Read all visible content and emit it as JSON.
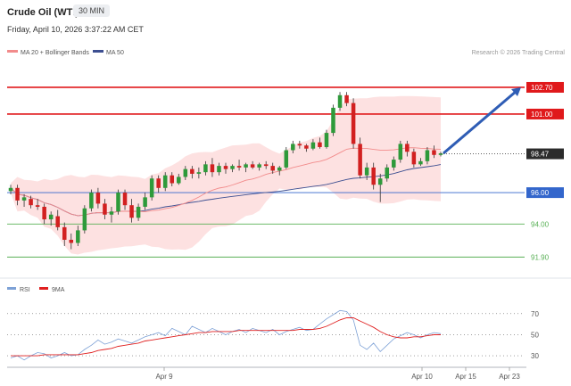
{
  "header": {
    "title": "Crude Oil (WTI)",
    "timeframe": "30 MIN",
    "datetime": "Friday, April 10, 2026 3:37:22 AM CET"
  },
  "chart_data": [
    {
      "type": "candlestick",
      "title": "Crude Oil (WTI)",
      "legend": [
        {
          "name": "MA 20 + Bollinger Bands",
          "color": "#f28b8b"
        },
        {
          "name": "MA 50",
          "color": "#3d4f91"
        }
      ],
      "credit": "Research © 2026 Trading Central",
      "ylim": [
        90.9,
        104.4
      ],
      "levels": [
        {
          "label": "102.70",
          "value": 102.7,
          "color": "#e0191b",
          "style": "thick"
        },
        {
          "label": "101.00",
          "value": 101.0,
          "color": "#e0191b",
          "style": "thick"
        },
        {
          "label": "96.00",
          "value": 96.0,
          "color": "#3366cc",
          "style": "thin"
        },
        {
          "label": "94.00",
          "value": 94.0,
          "color": "#58b055",
          "style": "thin"
        },
        {
          "label": "91.90",
          "value": 91.9,
          "color": "#58b055",
          "style": "thin"
        }
      ],
      "last_price": {
        "label": "98.47",
        "value": 98.47
      },
      "forecast": {
        "from": 98.5,
        "to": 102.7
      },
      "candles": [
        [
          96.1,
          96.5,
          95.9,
          96.3
        ],
        [
          96.3,
          96.5,
          95.2,
          95.5
        ],
        [
          95.5,
          95.9,
          95.1,
          95.7
        ],
        [
          95.6,
          95.8,
          95.0,
          95.2
        ],
        [
          95.2,
          95.6,
          94.9,
          95.1
        ],
        [
          95.1,
          95.3,
          94.0,
          94.3
        ],
        [
          94.3,
          94.8,
          93.9,
          94.6
        ],
        [
          94.5,
          94.9,
          93.6,
          93.8
        ],
        [
          93.8,
          94.1,
          92.6,
          93.0
        ],
        [
          93.0,
          93.4,
          92.4,
          92.8
        ],
        [
          92.8,
          93.9,
          92.6,
          93.6
        ],
        [
          93.6,
          95.2,
          93.4,
          95.0
        ],
        [
          95.0,
          96.2,
          94.8,
          96.0
        ],
        [
          96.0,
          96.3,
          95.0,
          95.3
        ],
        [
          95.3,
          95.6,
          94.3,
          94.6
        ],
        [
          94.6,
          95.1,
          94.1,
          94.8
        ],
        [
          94.8,
          96.2,
          94.6,
          96.0
        ],
        [
          96.0,
          96.2,
          94.9,
          95.2
        ],
        [
          95.2,
          95.6,
          94.1,
          94.4
        ],
        [
          94.4,
          95.3,
          94.2,
          95.1
        ],
        [
          95.1,
          96.0,
          94.9,
          95.7
        ],
        [
          95.7,
          97.1,
          95.5,
          96.9
        ],
        [
          96.9,
          97.1,
          96.0,
          96.3
        ],
        [
          96.3,
          97.3,
          96.1,
          97.1
        ],
        [
          97.1,
          97.3,
          96.4,
          96.6
        ],
        [
          96.6,
          97.2,
          96.5,
          97.0
        ],
        [
          97.0,
          97.7,
          96.8,
          97.5
        ],
        [
          97.5,
          97.7,
          96.9,
          97.2
        ],
        [
          97.2,
          97.6,
          96.9,
          97.3
        ],
        [
          97.3,
          98.0,
          97.1,
          97.8
        ],
        [
          97.8,
          98.2,
          97.0,
          97.3
        ],
        [
          97.3,
          97.9,
          97.1,
          97.7
        ],
        [
          97.7,
          97.9,
          97.2,
          97.5
        ],
        [
          97.5,
          97.8,
          97.3,
          97.7
        ],
        [
          97.7,
          98.1,
          97.4,
          97.6
        ],
        [
          97.6,
          97.9,
          97.3,
          97.8
        ],
        [
          97.8,
          98.0,
          97.5,
          97.6
        ],
        [
          97.6,
          97.9,
          97.4,
          97.8
        ],
        [
          97.8,
          98.0,
          97.5,
          97.7
        ],
        [
          97.7,
          97.9,
          97.2,
          97.4
        ],
        [
          97.4,
          97.7,
          97.1,
          97.6
        ],
        [
          97.6,
          98.9,
          97.5,
          98.7
        ],
        [
          98.7,
          99.3,
          98.5,
          99.1
        ],
        [
          99.1,
          99.3,
          98.8,
          99.0
        ],
        [
          99.0,
          99.1,
          98.6,
          98.8
        ],
        [
          98.8,
          99.4,
          98.7,
          99.2
        ],
        [
          99.2,
          99.5,
          98.8,
          98.9
        ],
        [
          98.9,
          100.0,
          98.8,
          99.8
        ],
        [
          99.8,
          101.6,
          99.6,
          101.4
        ],
        [
          101.4,
          102.4,
          101.2,
          102.2
        ],
        [
          102.2,
          102.4,
          101.5,
          101.7
        ],
        [
          101.7,
          102.0,
          98.8,
          99.1
        ],
        [
          99.1,
          99.5,
          96.9,
          97.1
        ],
        [
          97.1,
          97.9,
          96.8,
          97.6
        ],
        [
          97.6,
          97.9,
          96.2,
          96.5
        ],
        [
          96.5,
          97.2,
          95.4,
          96.9
        ],
        [
          96.9,
          97.8,
          96.7,
          97.6
        ],
        [
          97.6,
          98.3,
          97.4,
          98.1
        ],
        [
          98.1,
          99.3,
          97.9,
          99.1
        ],
        [
          99.1,
          99.3,
          98.3,
          98.6
        ],
        [
          98.6,
          98.8,
          97.6,
          97.8
        ],
        [
          97.8,
          98.2,
          97.7,
          98.0
        ],
        [
          98.0,
          98.9,
          97.8,
          98.7
        ],
        [
          98.7,
          99.0,
          98.2,
          98.4
        ],
        [
          98.4,
          98.6,
          98.3,
          98.5
        ]
      ]
    },
    {
      "type": "line",
      "title": "",
      "series": [
        {
          "name": "RSI",
          "color": "#7da1d6",
          "values": [
            28,
            30,
            26,
            30,
            33,
            32,
            28,
            30,
            33,
            30,
            31,
            36,
            40,
            45,
            41,
            43,
            46,
            44,
            42,
            45,
            48,
            50,
            52,
            49,
            56,
            53,
            50,
            58,
            55,
            52,
            56,
            53,
            50,
            53,
            55,
            52,
            56,
            54,
            52,
            55,
            50,
            53,
            55,
            57,
            54,
            55,
            60,
            65,
            69,
            73,
            72,
            64,
            40,
            36,
            42,
            34,
            40,
            46,
            49,
            52,
            50,
            47,
            50,
            52,
            51
          ]
        },
        {
          "name": "9MA",
          "color": "#e02020",
          "values": [
            30,
            30,
            30,
            30,
            30,
            31,
            31,
            31,
            31,
            31,
            31,
            32,
            33,
            35,
            36,
            37,
            39,
            40,
            41,
            42,
            44,
            45,
            46,
            47,
            48,
            49,
            50,
            51,
            52,
            52,
            53,
            53,
            53,
            53,
            54,
            54,
            54,
            54,
            54,
            54,
            54,
            54,
            54,
            55,
            55,
            55,
            56,
            58,
            61,
            64,
            66,
            66,
            63,
            60,
            57,
            53,
            50,
            48,
            47,
            47,
            48,
            48,
            49,
            50,
            50
          ]
        }
      ],
      "ylim": [
        25,
        80
      ],
      "y_ticks": [
        30,
        50,
        70
      ],
      "x_ticks": [
        "Apr 9",
        "Apr 10",
        "Apr 15",
        "Apr 23"
      ]
    }
  ]
}
